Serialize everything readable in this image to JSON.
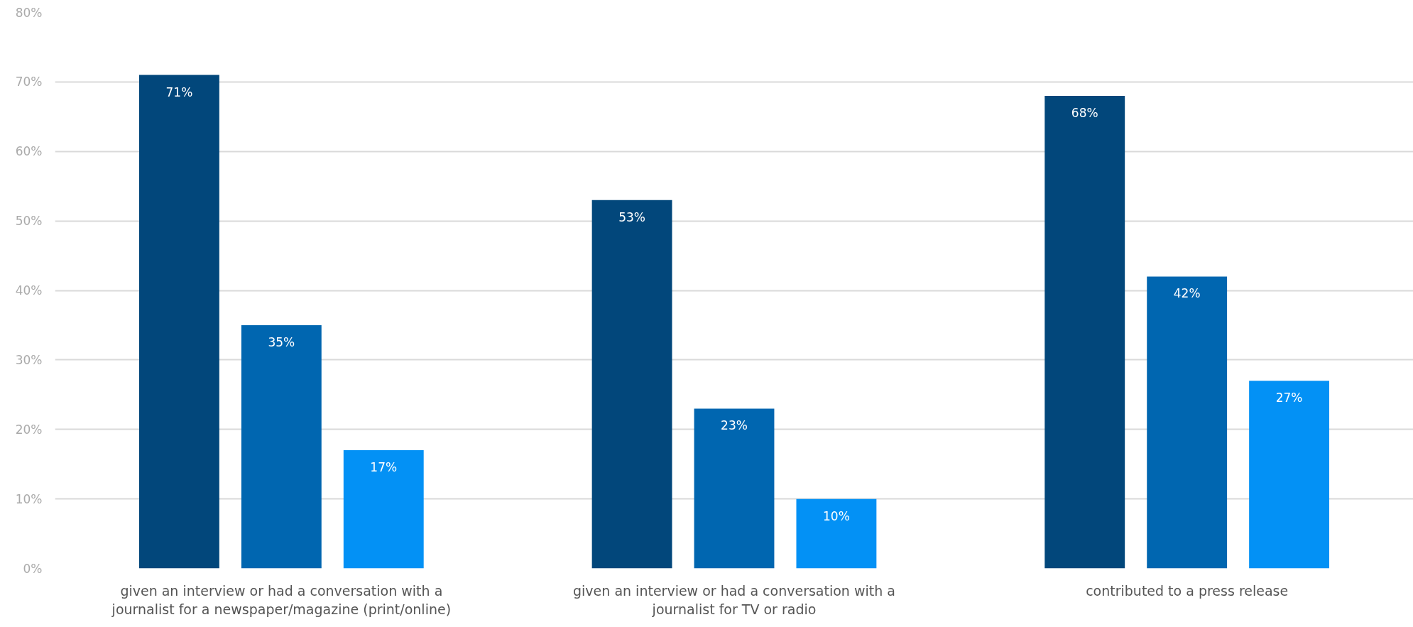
{
  "chart_data": {
    "type": "bar",
    "categories": [
      "given an interview or had a conversation with a\njournalist for a newspaper/magazine (print/online)",
      "given an interview or had a conversation with a\njournalist for TV or radio",
      "contributed to a press release"
    ],
    "series": [
      {
        "color": "#02477b",
        "values": [
          71,
          53,
          68
        ],
        "value_labels": [
          "71%",
          "53%",
          "68%"
        ]
      },
      {
        "color": "#0066b0",
        "values": [
          35,
          23,
          42
        ],
        "value_labels": [
          "35%",
          "23%",
          "42%"
        ]
      },
      {
        "color": "#0391f5",
        "values": [
          17,
          10,
          27
        ],
        "value_labels": [
          "17%",
          "10%",
          "27%"
        ]
      }
    ],
    "ylim": [
      0,
      80
    ],
    "yticks": [
      {
        "value": 0,
        "label": "0%"
      },
      {
        "value": 10,
        "label": "10%"
      },
      {
        "value": 20,
        "label": "20%"
      },
      {
        "value": 30,
        "label": "30%"
      },
      {
        "value": 40,
        "label": "40%"
      },
      {
        "value": 50,
        "label": "50%"
      },
      {
        "value": 60,
        "label": "60%"
      },
      {
        "value": 70,
        "label": "70%"
      },
      {
        "value": 80,
        "label": "80%"
      }
    ],
    "grid": "y"
  }
}
